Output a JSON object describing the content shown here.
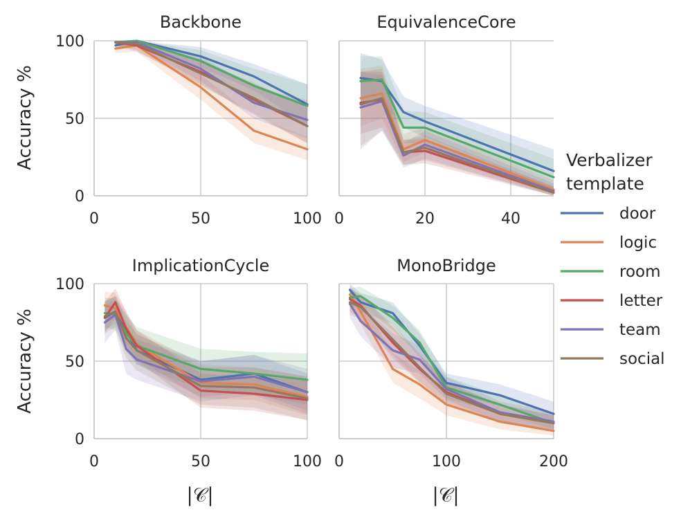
{
  "chart_data": {
    "type": "line",
    "ylabel": "Accuracy %",
    "xlabel": "|𝒞|",
    "legend": {
      "title_line1": "Verbalizer",
      "title_line2": "template",
      "entries": [
        "door",
        "logic",
        "room",
        "letter",
        "team",
        "social"
      ],
      "placement": "right"
    },
    "colors": {
      "door": "#4c72b0",
      "logic": "#dd8452",
      "room": "#55a868",
      "letter": "#c44e52",
      "team": "#8172b3",
      "social": "#937860",
      "grid": "#cccccc",
      "axis": "#cccccc"
    },
    "panels": [
      {
        "title": "Backbone",
        "xlim": [
          0,
          100
        ],
        "ylim": [
          0,
          100
        ],
        "xticks": [
          0,
          50,
          100
        ],
        "yticks": [
          0,
          50,
          100
        ],
        "x": [
          10,
          20,
          50,
          75,
          100
        ],
        "series": [
          {
            "name": "door",
            "values": [
              97,
              100,
              90,
              77,
              59
            ],
            "lower": [
              95,
              97,
              83,
              68,
              45
            ],
            "upper": [
              100,
              100,
              96,
              85,
              72
            ]
          },
          {
            "name": "logic",
            "values": [
              95,
              97,
              70,
              42,
              30
            ],
            "lower": [
              92,
              93,
              62,
              34,
              23
            ],
            "upper": [
              98,
              100,
              78,
              51,
              38
            ]
          },
          {
            "name": "room",
            "values": [
              99,
              100,
              87,
              71,
              58
            ],
            "lower": [
              97,
              97,
              80,
              60,
              45
            ],
            "upper": [
              100,
              100,
              94,
              82,
              72
            ]
          },
          {
            "name": "letter",
            "values": [
              99,
              97,
              80,
              62,
              45
            ],
            "lower": [
              97,
              93,
              72,
              52,
              34
            ],
            "upper": [
              100,
              100,
              88,
              72,
              57
            ]
          },
          {
            "name": "team",
            "values": [
              99,
              99,
              82,
              60,
              49
            ],
            "lower": [
              97,
              96,
              74,
              50,
              37
            ],
            "upper": [
              100,
              100,
              90,
              70,
              62
            ]
          },
          {
            "name": "social",
            "values": [
              99,
              98,
              79,
              63,
              45
            ],
            "lower": [
              97,
              94,
              71,
              53,
              34
            ],
            "upper": [
              100,
              100,
              87,
              73,
              57
            ]
          }
        ]
      },
      {
        "title": "EquivalenceCore",
        "xlim": [
          0,
          50
        ],
        "ylim": [
          0,
          100
        ],
        "xticks": [
          0,
          20,
          40
        ],
        "yticks": [
          0,
          50,
          100
        ],
        "x": [
          5,
          10,
          15,
          20,
          50
        ],
        "series": [
          {
            "name": "door",
            "values": [
              76,
              74,
              54,
              48,
              16
            ],
            "lower": [
              60,
              60,
              44,
              38,
              5
            ],
            "upper": [
              92,
              88,
              64,
              58,
              30
            ]
          },
          {
            "name": "logic",
            "values": [
              63,
              66,
              30,
              36,
              4
            ],
            "lower": [
              45,
              50,
              22,
              28,
              0
            ],
            "upper": [
              82,
              84,
              40,
              44,
              10
            ]
          },
          {
            "name": "room",
            "values": [
              74,
              75,
              44,
              44,
              12
            ],
            "lower": [
              57,
              60,
              34,
              34,
              3
            ],
            "upper": [
              90,
              90,
              55,
              54,
              24
            ]
          },
          {
            "name": "letter",
            "values": [
              60,
              62,
              28,
              29,
              2
            ],
            "lower": [
              40,
              44,
              20,
              21,
              0
            ],
            "upper": [
              80,
              80,
              36,
              37,
              6
            ]
          },
          {
            "name": "team",
            "values": [
              57,
              61,
              26,
              33,
              3
            ],
            "lower": [
              32,
              42,
              18,
              24,
              0
            ],
            "upper": [
              80,
              78,
              34,
              42,
              8
            ]
          },
          {
            "name": "social",
            "values": [
              59,
              63,
              28,
              31,
              2
            ],
            "lower": [
              30,
              42,
              20,
              23,
              0
            ],
            "upper": [
              80,
              82,
              36,
              39,
              6
            ]
          }
        ]
      },
      {
        "title": "ImplicationCycle",
        "xlim": [
          0,
          100
        ],
        "ylim": [
          0,
          100
        ],
        "xticks": [
          0,
          50,
          100
        ],
        "yticks": [
          0,
          50,
          100
        ],
        "x": [
          5,
          10,
          15,
          20,
          50,
          75,
          100
        ],
        "series": [
          {
            "name": "door",
            "values": [
              78,
              82,
              70,
              57,
              38,
              42,
              30
            ],
            "lower": [
              70,
              74,
              60,
              48,
              27,
              30,
              18
            ],
            "upper": [
              88,
              92,
              80,
              67,
              50,
              54,
              42
            ]
          },
          {
            "name": "logic",
            "values": [
              86,
              84,
              72,
              61,
              36,
              35,
              27
            ],
            "lower": [
              78,
              76,
              62,
              52,
              26,
              25,
              15
            ],
            "upper": [
              95,
              94,
              82,
              70,
              48,
              46,
              40
            ]
          },
          {
            "name": "room",
            "values": [
              81,
              80,
              68,
              60,
              45,
              42,
              38
            ],
            "lower": [
              72,
              70,
              56,
              48,
              32,
              28,
              22
            ],
            "upper": [
              91,
              90,
              80,
              72,
              58,
              56,
              55
            ]
          },
          {
            "name": "letter",
            "values": [
              78,
              88,
              71,
              60,
              31,
              29,
              25
            ],
            "lower": [
              68,
              78,
              60,
              50,
              20,
              18,
              12
            ],
            "upper": [
              88,
              97,
              82,
              70,
              42,
              40,
              38
            ]
          },
          {
            "name": "team",
            "values": [
              75,
              80,
              58,
              51,
              37,
              40,
              30
            ],
            "lower": [
              62,
              70,
              42,
              38,
              24,
              28,
              16
            ],
            "upper": [
              86,
              90,
              72,
              64,
              50,
              54,
              45
            ]
          },
          {
            "name": "social",
            "values": [
              79,
              82,
              65,
              57,
              34,
              33,
              26
            ],
            "lower": [
              68,
              72,
              52,
              44,
              22,
              20,
              12
            ],
            "upper": [
              89,
              92,
              76,
              68,
              46,
              46,
              40
            ]
          }
        ]
      },
      {
        "title": "MonoBridge",
        "xlim": [
          0,
          200
        ],
        "ylim": [
          0,
          100
        ],
        "xticks": [
          0,
          100,
          200
        ],
        "yticks": [
          0,
          50,
          100
        ],
        "x": [
          10,
          20,
          50,
          75,
          100,
          150,
          200
        ],
        "series": [
          {
            "name": "door",
            "values": [
              96,
              88,
              81,
              60,
              36,
              28,
              16
            ],
            "lower": [
              90,
              82,
              74,
              52,
              30,
              21,
              10
            ],
            "upper": [
              100,
              94,
              88,
              68,
              42,
              35,
              24
            ]
          },
          {
            "name": "logic",
            "values": [
              93,
              82,
              45,
              35,
              22,
              11,
              5
            ],
            "lower": [
              86,
              74,
              36,
              26,
              15,
              6,
              2
            ],
            "upper": [
              99,
              90,
              55,
              44,
              30,
              18,
              10
            ]
          },
          {
            "name": "room",
            "values": [
              91,
              92,
              78,
              62,
              33,
              22,
              10
            ],
            "lower": [
              84,
              86,
              70,
              54,
              26,
              16,
              6
            ],
            "upper": [
              97,
              98,
              86,
              70,
              40,
              28,
              16
            ]
          },
          {
            "name": "letter",
            "values": [
              90,
              86,
              62,
              45,
              30,
              16,
              10
            ],
            "lower": [
              82,
              78,
              52,
              36,
              23,
              10,
              5
            ],
            "upper": [
              97,
              93,
              72,
              54,
              37,
              22,
              15
            ]
          },
          {
            "name": "team",
            "values": [
              87,
              76,
              57,
              51,
              32,
              17,
              11
            ],
            "lower": [
              78,
              66,
              46,
              42,
              25,
              11,
              6
            ],
            "upper": [
              95,
              86,
              68,
              60,
              40,
              24,
              17
            ]
          },
          {
            "name": "social",
            "values": [
              88,
              85,
              64,
              46,
              29,
              16,
              10
            ],
            "lower": [
              80,
              77,
              54,
              37,
              22,
              10,
              5
            ],
            "upper": [
              96,
              92,
              74,
              55,
              36,
              22,
              15
            ]
          }
        ]
      }
    ]
  }
}
